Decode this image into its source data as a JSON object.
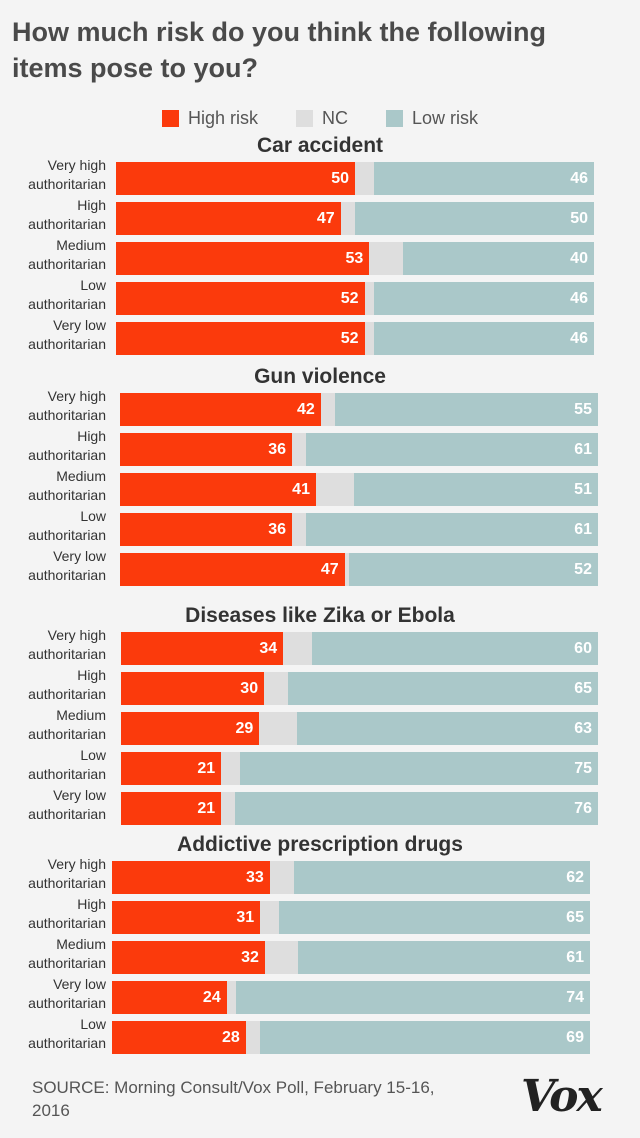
{
  "title": "How much risk do you think the following items pose to you?",
  "legend": {
    "high": "High risk",
    "nc": "NC",
    "low": "Low risk"
  },
  "colors": {
    "high": "#fb3a0c",
    "nc": "#dedede",
    "low": "#aac8c9"
  },
  "source": "SOURCE: Morning Consult/Vox Poll, February 15-16, 2016",
  "logo": "Vox",
  "chart_data": [
    {
      "type": "bar",
      "orientation": "horizontal",
      "stacked": true,
      "title": "Car accident",
      "categories": [
        "Very high authoritarian",
        "High authoritarian",
        "Medium authoritarian",
        "Low authoritarian",
        "Very low authoritarian"
      ],
      "series": [
        {
          "name": "High risk",
          "values": [
            50,
            47,
            53,
            52,
            52
          ]
        },
        {
          "name": "Low risk",
          "values": [
            46,
            50,
            40,
            46,
            46
          ]
        }
      ]
    },
    {
      "type": "bar",
      "orientation": "horizontal",
      "stacked": true,
      "title": "Gun violence",
      "categories": [
        "Very high authoritarian",
        "High authoritarian",
        "Medium authoritarian",
        "Low authoritarian",
        "Very low authoritarian"
      ],
      "series": [
        {
          "name": "High risk",
          "values": [
            42,
            36,
            41,
            36,
            47
          ]
        },
        {
          "name": "Low risk",
          "values": [
            55,
            61,
            51,
            61,
            52
          ]
        }
      ]
    },
    {
      "type": "bar",
      "orientation": "horizontal",
      "stacked": true,
      "title": "Diseases like Zika or Ebola",
      "categories": [
        "Very high authoritarian",
        "High authoritarian",
        "Medium authoritarian",
        "Low authoritarian",
        "Very low authoritarian"
      ],
      "series": [
        {
          "name": "High risk",
          "values": [
            34,
            30,
            29,
            21,
            21
          ]
        },
        {
          "name": "Low risk",
          "values": [
            60,
            65,
            63,
            75,
            76
          ]
        }
      ]
    },
    {
      "type": "bar",
      "orientation": "horizontal",
      "stacked": true,
      "title": "Addictive prescription drugs",
      "categories": [
        "Very high authoritarian",
        "High authoritarian",
        "Medium authoritarian",
        "Very low authoritarian",
        "Low authoritarian"
      ],
      "series": [
        {
          "name": "High risk",
          "values": [
            33,
            31,
            32,
            24,
            28
          ]
        },
        {
          "name": "Low risk",
          "values": [
            62,
            65,
            61,
            74,
            69
          ]
        }
      ]
    }
  ]
}
